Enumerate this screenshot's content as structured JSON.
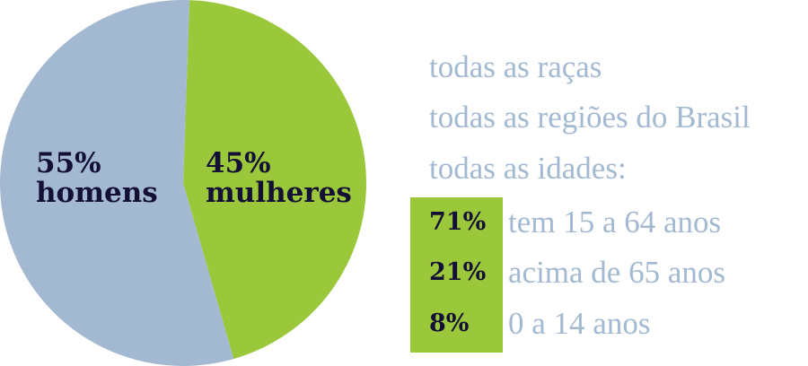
{
  "chart_data": {
    "type": "pie",
    "slices": [
      {
        "label": "mulheres",
        "value": 45,
        "value_label": "45%",
        "color": "#9bc83b"
      },
      {
        "label": "homens",
        "value": 55,
        "value_label": "55%",
        "color": "#a3b9d2"
      }
    ]
  },
  "info": {
    "lines": [
      "todas as raças",
      "todas as regiões do Brasil",
      "todas as idades:"
    ],
    "box_color": "#9bc83b",
    "ages": [
      {
        "pct": "71%",
        "label": "tem 15 a 64 anos"
      },
      {
        "pct": "21%",
        "label": "acima de 65 anos"
      },
      {
        "pct": "8%",
        "label": "0 a 14 anos"
      }
    ]
  }
}
